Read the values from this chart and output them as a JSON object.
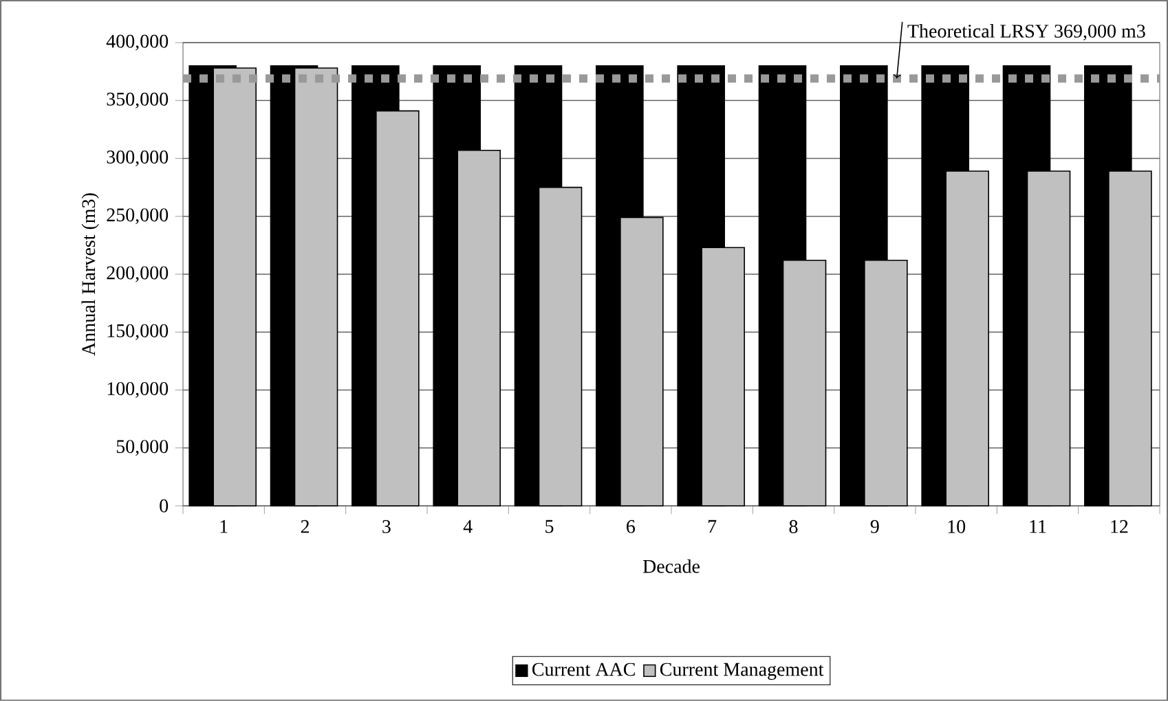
{
  "chart_data": {
    "type": "bar",
    "xlabel": "Decade",
    "ylabel": "Annual Harvest (m3)",
    "categories": [
      "1",
      "2",
      "3",
      "4",
      "5",
      "6",
      "7",
      "8",
      "9",
      "10",
      "11",
      "12"
    ],
    "series": [
      {
        "name": "Current AAC",
        "color": "#000000",
        "values": [
          380000,
          380000,
          380000,
          380000,
          380000,
          380000,
          380000,
          380000,
          380000,
          380000,
          380000,
          380000
        ]
      },
      {
        "name": "Current Management",
        "color": "#c0c0c0",
        "values": [
          378000,
          378000,
          341000,
          307000,
          275000,
          249000,
          223000,
          212000,
          212000,
          289000,
          289000,
          289000
        ]
      }
    ],
    "ylim": [
      0,
      400000
    ],
    "yticks": [
      {
        "value": 0,
        "label": "0"
      },
      {
        "value": 50000,
        "label": "50,000"
      },
      {
        "value": 100000,
        "label": "100,000"
      },
      {
        "value": 150000,
        "label": "150,000"
      },
      {
        "value": 200000,
        "label": "200,000"
      },
      {
        "value": 250000,
        "label": "250,000"
      },
      {
        "value": 300000,
        "label": "300,000"
      },
      {
        "value": 350000,
        "label": "350,000"
      },
      {
        "value": 400000,
        "label": "400,000"
      }
    ],
    "ref_lines": [
      {
        "axis": "y",
        "value": 369000,
        "color": "#999999",
        "line_style": "dotted"
      }
    ],
    "annotations": [
      {
        "text": "Theoretical LRSY 369,000 m3",
        "y": 369000
      }
    ],
    "grid": "y",
    "legend": "bottom"
  }
}
